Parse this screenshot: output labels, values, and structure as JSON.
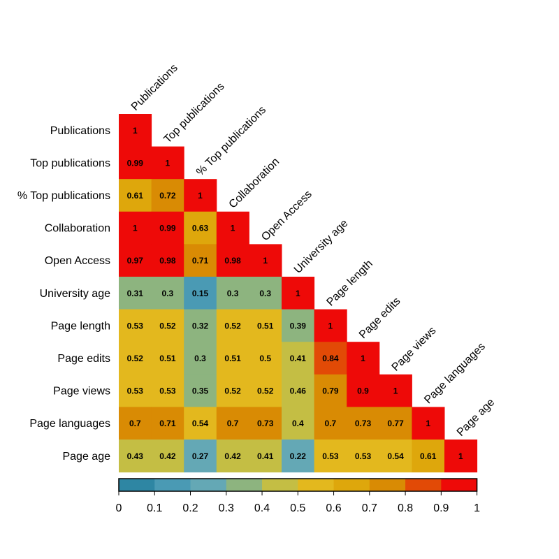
{
  "chart_data": {
    "type": "heatmap",
    "variables": [
      "Publications",
      "Top publications",
      "% Top publications",
      "Collaboration",
      "Open Access",
      "University age",
      "Page length",
      "Page edits",
      "Page views",
      "Page languages",
      "Page age"
    ],
    "matrix_lower": [
      [
        1
      ],
      [
        0.99,
        1
      ],
      [
        0.61,
        0.72,
        1
      ],
      [
        1,
        0.99,
        0.63,
        1
      ],
      [
        0.97,
        0.98,
        0.71,
        0.98,
        1
      ],
      [
        0.31,
        0.3,
        0.15,
        0.3,
        0.3,
        1
      ],
      [
        0.53,
        0.52,
        0.32,
        0.52,
        0.51,
        0.39,
        1
      ],
      [
        0.52,
        0.51,
        0.3,
        0.51,
        0.5,
        0.41,
        0.84,
        1
      ],
      [
        0.53,
        0.53,
        0.35,
        0.52,
        0.52,
        0.46,
        0.79,
        0.9,
        1
      ],
      [
        0.7,
        0.71,
        0.54,
        0.7,
        0.73,
        0.4,
        0.7,
        0.73,
        0.77,
        1
      ],
      [
        0.43,
        0.42,
        0.27,
        0.42,
        0.41,
        0.22,
        0.53,
        0.53,
        0.54,
        0.61,
        1
      ]
    ],
    "colorbar": {
      "ticks": [
        0,
        0.1,
        0.2,
        0.3,
        0.4,
        0.5,
        0.6,
        0.7,
        0.8,
        0.9,
        1
      ],
      "tick_labels": [
        "0",
        "0.1",
        "0.2",
        "0.3",
        "0.4",
        "0.5",
        "0.6",
        "0.7",
        "0.8",
        "0.9",
        "1"
      ],
      "range": [
        0,
        1
      ],
      "bins": 10,
      "colors": [
        "#2e86a3",
        "#4a9ab4",
        "#64a8b5",
        "#8db47f",
        "#c4be44",
        "#e3b81e",
        "#dea70c",
        "#d98b04",
        "#e24a06",
        "#ee0a08"
      ]
    },
    "grid": false,
    "legend": "colorbar-bottom"
  }
}
